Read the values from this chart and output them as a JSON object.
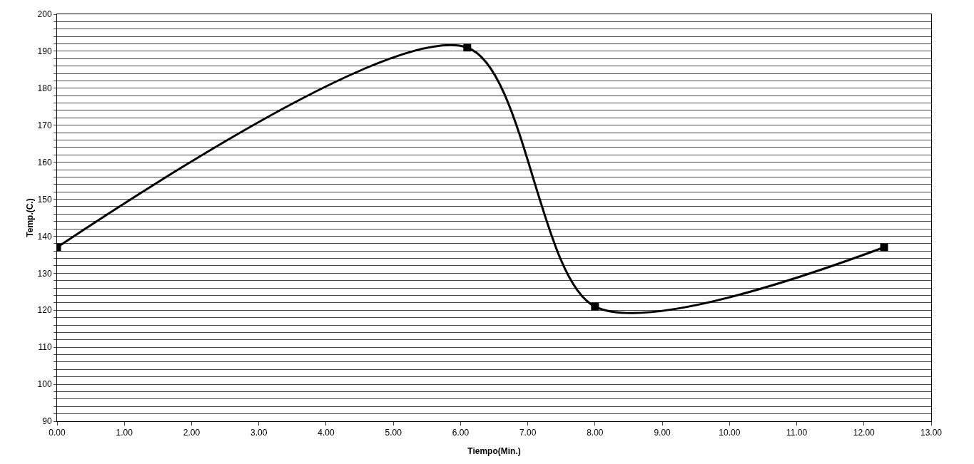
{
  "chart_data": {
    "type": "line",
    "xlabel": "Tiempo(Min.)",
    "ylabel": "Temp.(C.)",
    "x": [
      0,
      6.1,
      8.0,
      12.3
    ],
    "series": [
      {
        "color": "#000000",
        "values": [
          137,
          191,
          121,
          137
        ]
      }
    ],
    "xlim": [
      0,
      13
    ],
    "xticks": [
      {
        "value": 0,
        "label": "0.00"
      },
      {
        "value": 1,
        "label": "1.00"
      },
      {
        "value": 2,
        "label": "2.00"
      },
      {
        "value": 3,
        "label": "3.00"
      },
      {
        "value": 4,
        "label": "4.00"
      },
      {
        "value": 5,
        "label": "5.00"
      },
      {
        "value": 6,
        "label": "6.00"
      },
      {
        "value": 7,
        "label": "7.00"
      },
      {
        "value": 8,
        "label": "8.00"
      },
      {
        "value": 9,
        "label": "9.00"
      },
      {
        "value": 10,
        "label": "10.00"
      },
      {
        "value": 11,
        "label": "11.00"
      },
      {
        "value": 12,
        "label": "12.00"
      },
      {
        "value": 13,
        "label": "13.00"
      }
    ],
    "ylim": [
      90,
      200
    ],
    "yticks": [
      90,
      {
        "value": 92,
        "label": null
      },
      {
        "value": 94,
        "label": null
      },
      {
        "value": 96,
        "label": null
      },
      {
        "value": 98,
        "label": null
      },
      100,
      {
        "value": 102,
        "label": null
      },
      {
        "value": 104,
        "label": null
      },
      {
        "value": 106,
        "label": null
      },
      {
        "value": 108,
        "label": null
      },
      110,
      {
        "value": 112,
        "label": null
      },
      {
        "value": 114,
        "label": null
      },
      {
        "value": 116,
        "label": null
      },
      {
        "value": 118,
        "label": null
      },
      120,
      {
        "value": 122,
        "label": null
      },
      {
        "value": 124,
        "label": null
      },
      {
        "value": 126,
        "label": null
      },
      {
        "value": 128,
        "label": null
      },
      130,
      {
        "value": 132,
        "label": null
      },
      {
        "value": 134,
        "label": null
      },
      {
        "value": 136,
        "label": null
      },
      {
        "value": 138,
        "label": null
      },
      140,
      {
        "value": 142,
        "label": null
      },
      {
        "value": 144,
        "label": null
      },
      {
        "value": 146,
        "label": null
      },
      {
        "value": 148,
        "label": null
      },
      150,
      {
        "value": 152,
        "label": null
      },
      {
        "value": 154,
        "label": null
      },
      {
        "value": 156,
        "label": null
      },
      {
        "value": 158,
        "label": null
      },
      160,
      {
        "value": 162,
        "label": null
      },
      {
        "value": 164,
        "label": null
      },
      {
        "value": 166,
        "label": null
      },
      {
        "value": 168,
        "label": null
      },
      170,
      {
        "value": 172,
        "label": null
      },
      {
        "value": 174,
        "label": null
      },
      {
        "value": 176,
        "label": null
      },
      {
        "value": 178,
        "label": null
      },
      180,
      {
        "value": 182,
        "label": null
      },
      {
        "value": 184,
        "label": null
      },
      {
        "value": 186,
        "label": null
      },
      {
        "value": 188,
        "label": null
      },
      190,
      {
        "value": 192,
        "label": null
      },
      {
        "value": 194,
        "label": null
      },
      {
        "value": 196,
        "label": null
      },
      {
        "value": 198,
        "label": null
      },
      200
    ],
    "grid": "y",
    "marker": "square",
    "line_style": "solid"
  }
}
